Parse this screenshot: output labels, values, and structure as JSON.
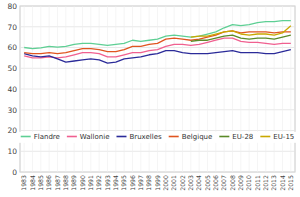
{
  "chart_data": {
    "type": "line",
    "x": [
      1983,
      1984,
      1985,
      1986,
      1987,
      1988,
      1989,
      1990,
      1991,
      1992,
      1993,
      1994,
      1995,
      1996,
      1997,
      1998,
      1999,
      2000,
      2001,
      2002,
      2003,
      2004,
      2005,
      2006,
      2007,
      2008,
      2009,
      2010,
      2011,
      2012,
      2013,
      2014,
      2015
    ],
    "series": [
      {
        "name": "Flandre",
        "color": "#5ecf94",
        "values": [
          60.0,
          59.5,
          59.8,
          60.5,
          60.2,
          60.5,
          61.5,
          62.0,
          62.0,
          61.5,
          61.0,
          61.5,
          62.0,
          63.5,
          63.0,
          63.5,
          64.0,
          65.5,
          66.0,
          65.5,
          65.0,
          65.5,
          66.5,
          67.5,
          69.5,
          71.0,
          70.5,
          71.0,
          72.0,
          72.5,
          72.5,
          73.0,
          73.0
        ]
      },
      {
        "name": "Wallonie",
        "color": "#f06090",
        "values": [
          56.0,
          55.0,
          55.0,
          55.5,
          55.0,
          55.5,
          56.5,
          57.5,
          57.5,
          57.0,
          55.5,
          55.5,
          56.5,
          57.5,
          57.5,
          58.5,
          59.0,
          60.5,
          61.5,
          61.5,
          61.0,
          61.5,
          62.5,
          63.5,
          64.5,
          64.5,
          63.0,
          62.5,
          62.5,
          62.0,
          61.5,
          62.0,
          62.0
        ]
      },
      {
        "name": "Bruxelles",
        "color": "#2b2b99",
        "values": [
          57.0,
          56.0,
          55.5,
          56.0,
          54.5,
          53.0,
          53.5,
          54.0,
          54.5,
          54.0,
          52.5,
          53.0,
          54.5,
          55.0,
          55.5,
          56.5,
          57.0,
          58.5,
          58.5,
          57.5,
          57.0,
          57.0,
          57.0,
          57.5,
          58.0,
          58.5,
          57.5,
          57.5,
          57.5,
          57.0,
          57.0,
          58.0,
          59.0
        ]
      },
      {
        "name": "Belgique",
        "color": "#e05520",
        "values": [
          57.5,
          57.0,
          57.0,
          57.5,
          57.0,
          57.5,
          58.5,
          59.5,
          59.5,
          59.0,
          58.0,
          58.0,
          59.0,
          60.5,
          60.5,
          61.5,
          62.0,
          64.0,
          64.5,
          64.0,
          63.5,
          64.0,
          65.0,
          66.0,
          67.5,
          68.0,
          67.0,
          67.5,
          67.5,
          67.5,
          67.0,
          67.5,
          67.5
        ]
      },
      {
        "name": "EU-28",
        "color": "#5a8a28",
        "values": [
          null,
          null,
          null,
          null,
          null,
          null,
          null,
          null,
          null,
          null,
          null,
          null,
          null,
          null,
          null,
          null,
          null,
          null,
          null,
          null,
          63.0,
          63.5,
          63.5,
          64.5,
          65.5,
          66.0,
          64.5,
          64.0,
          64.5,
          64.5,
          64.0,
          65.0,
          66.0
        ]
      },
      {
        "name": "EU-15",
        "color": "#c9a800",
        "values": [
          null,
          null,
          null,
          null,
          null,
          null,
          null,
          null,
          null,
          null,
          null,
          null,
          null,
          null,
          null,
          null,
          null,
          null,
          null,
          null,
          65.0,
          65.5,
          65.5,
          66.5,
          67.5,
          68.0,
          66.5,
          66.0,
          66.5,
          66.5,
          66.0,
          67.0,
          70.5
        ]
      }
    ],
    "xlim": [
      1982.5,
      2015.5
    ],
    "xticks": [
      1983,
      1984,
      1985,
      1986,
      1987,
      1988,
      1989,
      1990,
      1991,
      1992,
      1993,
      1994,
      1995,
      1996,
      1997,
      1998,
      1999,
      2000,
      2001,
      2002,
      2003,
      2004,
      2005,
      2006,
      2007,
      2008,
      2009,
      2010,
      2011,
      2012,
      2013,
      2014,
      2015
    ],
    "ylim": [
      0,
      80
    ],
    "yticks": [
      0,
      10,
      20,
      30,
      40,
      50,
      60,
      70,
      80
    ],
    "grid": true,
    "legend": "bottom"
  }
}
